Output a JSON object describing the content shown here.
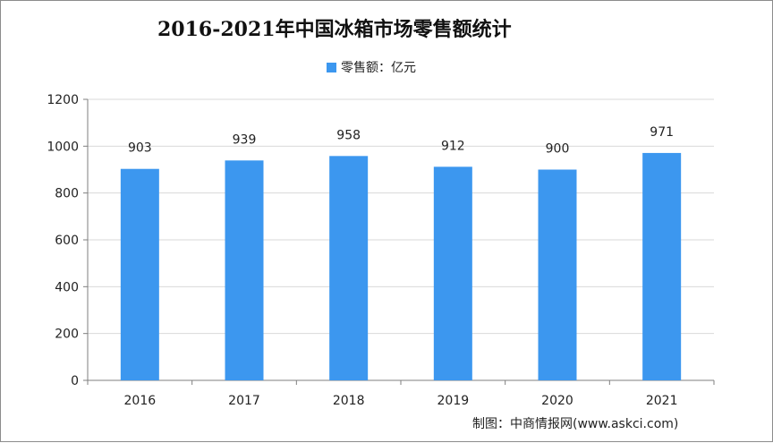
{
  "chart_data": {
    "type": "bar",
    "title": "2016-2021年中国冰箱市场零售额统计",
    "categories": [
      "2016",
      "2017",
      "2018",
      "2019",
      "2020",
      "2021"
    ],
    "series": [
      {
        "name": "零售额：亿元",
        "values": [
          903,
          939,
          958,
          912,
          900,
          971
        ]
      }
    ],
    "ylim": [
      0,
      1200
    ],
    "yticks": [
      0,
      200,
      400,
      600,
      800,
      1000,
      1200
    ],
    "grid": true,
    "legend_position": "top-center",
    "data_labels": [
      "903",
      "939",
      "958",
      "912",
      "900",
      "971"
    ]
  },
  "colors": {
    "bar": "#3c97ef",
    "grid": "#d9d9d9",
    "axis": "#7f7f7f"
  },
  "source": "制图：中商情报网(www.askci.com)"
}
